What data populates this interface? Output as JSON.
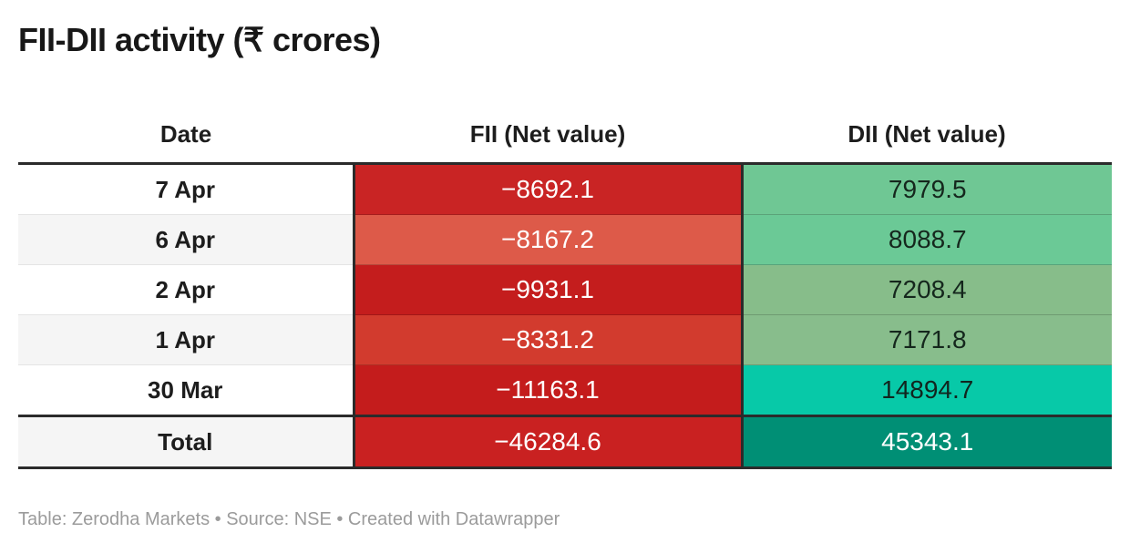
{
  "title": "FII-DII activity (₹ crores)",
  "footer": {
    "text": "Table: Zerodha Markets • Source: NSE • Created with Datawrapper"
  },
  "table": {
    "columns": [
      "Date",
      "FII (Net value)",
      "DII (Net value)"
    ],
    "rows": [
      {
        "date": "7 Apr",
        "date_bg": "#ffffff",
        "fii": "−8692.1",
        "fii_bg": "#c92424",
        "fii_fg": "#ffffff",
        "dii": "7979.5",
        "dii_bg": "#6fc794",
        "dii_fg": "#15271d"
      },
      {
        "date": "6 Apr",
        "date_bg": "#f5f5f5",
        "fii": "−8167.2",
        "fii_bg": "#dd5a49",
        "fii_fg": "#ffffff",
        "dii": "8088.7",
        "dii_bg": "#6bc996",
        "dii_fg": "#15271d"
      },
      {
        "date": "2 Apr",
        "date_bg": "#ffffff",
        "fii": "−9931.1",
        "fii_bg": "#c41d1d",
        "fii_fg": "#ffffff",
        "dii": "7208.4",
        "dii_bg": "#87bd8a",
        "dii_fg": "#15271d"
      },
      {
        "date": "1 Apr",
        "date_bg": "#f5f5f5",
        "fii": "−8331.2",
        "fii_bg": "#d23b2e",
        "fii_fg": "#ffffff",
        "dii": "7171.8",
        "dii_bg": "#88bd8c",
        "dii_fg": "#15271d"
      },
      {
        "date": "30 Mar",
        "date_bg": "#ffffff",
        "fii": "−11163.1",
        "fii_bg": "#c41c1c",
        "fii_fg": "#ffffff",
        "dii": "14894.7",
        "dii_bg": "#07c9a8",
        "dii_fg": "#11251e"
      }
    ],
    "total": {
      "date": "Total",
      "date_bg": "#f5f5f5",
      "fii": "−46284.6",
      "fii_bg": "#c92121",
      "fii_fg": "#ffffff",
      "dii": "45343.1",
      "dii_bg": "#008f75",
      "dii_fg": "#ffffff"
    }
  },
  "colors": {
    "border_dark": "#2b2b2b",
    "row_alt_bg": "#f5f5f5",
    "footer_text": "#9b9b9b"
  },
  "chart_data": {
    "type": "table",
    "title": "FII-DII activity (₹ crores)",
    "columns": [
      "Date",
      "FII (Net value)",
      "DII (Net value)"
    ],
    "rows": [
      [
        "7 Apr",
        -8692.1,
        7979.5
      ],
      [
        "6 Apr",
        -8167.2,
        8088.7
      ],
      [
        "2 Apr",
        -9931.1,
        7208.4
      ],
      [
        "1 Apr",
        -8331.2,
        7171.8
      ],
      [
        "30 Mar",
        -11163.1,
        14894.7
      ],
      [
        "Total",
        -46284.6,
        45343.1
      ]
    ],
    "layout_hints": "heatmap-style table: FII column negative values shaded red (darker = more negative), DII column positive values shaded green/teal (brighter/darker = larger), total row emphasized with thick dark borders"
  }
}
